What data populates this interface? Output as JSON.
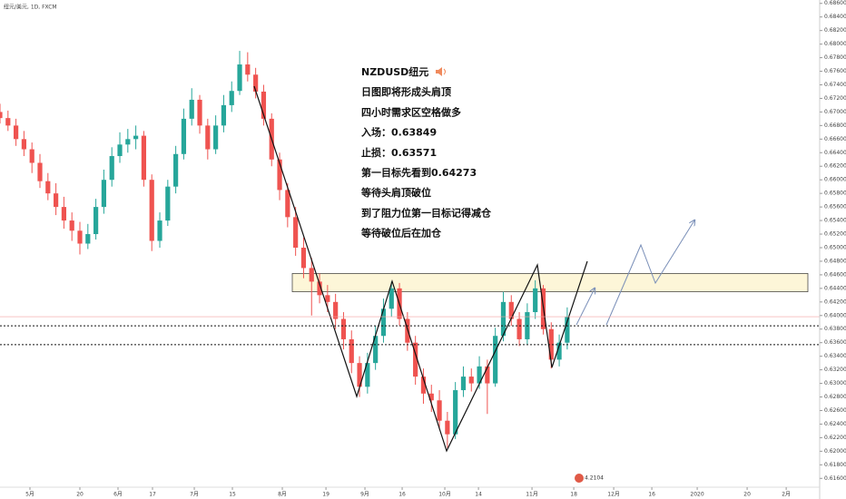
{
  "header": {
    "symbol": "纽元/美元, 1D, FXCM"
  },
  "chart_data": {
    "type": "candlestick",
    "up_color": "#26a69a",
    "down_color": "#ef5350",
    "ohlc": [
      [
        0.67,
        0.6712,
        0.6683,
        0.6691
      ],
      [
        0.6691,
        0.6702,
        0.6672,
        0.668
      ],
      [
        0.668,
        0.669,
        0.665,
        0.666
      ],
      [
        0.666,
        0.6672,
        0.6635,
        0.6645
      ],
      [
        0.6645,
        0.6655,
        0.661,
        0.6625
      ],
      [
        0.6625,
        0.6638,
        0.6588,
        0.6598
      ],
      [
        0.6598,
        0.661,
        0.657,
        0.658
      ],
      [
        0.658,
        0.6595,
        0.6548,
        0.656
      ],
      [
        0.656,
        0.6575,
        0.6528,
        0.654
      ],
      [
        0.654,
        0.6552,
        0.651,
        0.6525
      ],
      [
        0.6525,
        0.6538,
        0.649,
        0.6506
      ],
      [
        0.6506,
        0.6535,
        0.6498,
        0.652
      ],
      [
        0.652,
        0.6572,
        0.6512,
        0.656
      ],
      [
        0.656,
        0.6615,
        0.655,
        0.66
      ],
      [
        0.66,
        0.6648,
        0.659,
        0.6635
      ],
      [
        0.6635,
        0.667,
        0.6625,
        0.6652
      ],
      [
        0.6652,
        0.6675,
        0.664,
        0.666
      ],
      [
        0.666,
        0.668,
        0.6645,
        0.6665
      ],
      [
        0.6665,
        0.6672,
        0.659,
        0.66
      ],
      [
        0.66,
        0.6608,
        0.6495,
        0.651
      ],
      [
        0.651,
        0.6552,
        0.65,
        0.654
      ],
      [
        0.654,
        0.66,
        0.6532,
        0.659
      ],
      [
        0.659,
        0.665,
        0.658,
        0.6638
      ],
      [
        0.6638,
        0.6705,
        0.663,
        0.669
      ],
      [
        0.669,
        0.6735,
        0.668,
        0.6718
      ],
      [
        0.6718,
        0.6725,
        0.6668,
        0.668
      ],
      [
        0.668,
        0.669,
        0.663,
        0.6645
      ],
      [
        0.6645,
        0.6695,
        0.6638,
        0.668
      ],
      [
        0.668,
        0.6725,
        0.667,
        0.671
      ],
      [
        0.671,
        0.6745,
        0.67,
        0.6731
      ],
      [
        0.6731,
        0.679,
        0.6725,
        0.677
      ],
      [
        0.677,
        0.6788,
        0.6745,
        0.6755
      ],
      [
        0.6755,
        0.6765,
        0.672,
        0.673
      ],
      [
        0.673,
        0.674,
        0.668,
        0.669
      ],
      [
        0.669,
        0.6698,
        0.662,
        0.663
      ],
      [
        0.663,
        0.664,
        0.657,
        0.6585
      ],
      [
        0.6585,
        0.6595,
        0.653,
        0.6545
      ],
      [
        0.6545,
        0.656,
        0.6488,
        0.65
      ],
      [
        0.65,
        0.6515,
        0.6455,
        0.647
      ],
      [
        0.647,
        0.6485,
        0.64,
        0.645
      ],
      [
        0.645,
        0.6462,
        0.6418,
        0.643
      ],
      [
        0.643,
        0.6445,
        0.6405,
        0.642
      ],
      [
        0.642,
        0.6432,
        0.638,
        0.6395
      ],
      [
        0.6395,
        0.6405,
        0.635,
        0.6365
      ],
      [
        0.6365,
        0.6378,
        0.6315,
        0.633
      ],
      [
        0.633,
        0.634,
        0.628,
        0.6295
      ],
      [
        0.6295,
        0.6345,
        0.6285,
        0.633
      ],
      [
        0.633,
        0.6385,
        0.632,
        0.637
      ],
      [
        0.637,
        0.6425,
        0.636,
        0.641
      ],
      [
        0.641,
        0.645,
        0.6398,
        0.644
      ],
      [
        0.644,
        0.6448,
        0.6385,
        0.6395
      ],
      [
        0.6395,
        0.6405,
        0.6348,
        0.636
      ],
      [
        0.636,
        0.637,
        0.6298,
        0.631
      ],
      [
        0.631,
        0.6322,
        0.627,
        0.6285
      ],
      [
        0.6285,
        0.6298,
        0.6258,
        0.6275
      ],
      [
        0.6275,
        0.629,
        0.6232,
        0.6245
      ],
      [
        0.6245,
        0.6258,
        0.6205,
        0.6225
      ],
      [
        0.6225,
        0.6302,
        0.6218,
        0.629
      ],
      [
        0.629,
        0.6325,
        0.628,
        0.631
      ],
      [
        0.631,
        0.6322,
        0.6288,
        0.63
      ],
      [
        0.63,
        0.634,
        0.6292,
        0.6325
      ],
      [
        0.6325,
        0.6335,
        0.6255,
        0.63
      ],
      [
        0.63,
        0.6382,
        0.6295,
        0.637
      ],
      [
        0.637,
        0.6435,
        0.6362,
        0.642
      ],
      [
        0.642,
        0.643,
        0.6385,
        0.6395
      ],
      [
        0.6395,
        0.6405,
        0.6355,
        0.6365
      ],
      [
        0.6365,
        0.6418,
        0.6358,
        0.6405
      ],
      [
        0.6405,
        0.6452,
        0.6395,
        0.644
      ],
      [
        0.644,
        0.6445,
        0.6372,
        0.638
      ],
      [
        0.638,
        0.639,
        0.6322,
        0.6335
      ],
      [
        0.6335,
        0.6372,
        0.6325,
        0.636
      ],
      [
        0.636,
        0.6412,
        0.635,
        0.6398
      ]
    ],
    "xlim": [
      0,
      102.6
    ],
    "ylim": [
      0.6147,
      0.6865
    ],
    "xticks": [
      {
        "value": 3.75,
        "label": "5月"
      },
      {
        "value": 10,
        "label": "20"
      },
      {
        "value": 14.77,
        "label": "6月"
      },
      {
        "value": 19.09,
        "label": "17"
      },
      {
        "value": 24.32,
        "label": "7月"
      },
      {
        "value": 29.09,
        "label": "15"
      },
      {
        "value": 35.34,
        "label": "8月"
      },
      {
        "value": 40.8,
        "label": "19"
      },
      {
        "value": 45.68,
        "label": "9月"
      },
      {
        "value": 50.34,
        "label": "16"
      },
      {
        "value": 55.68,
        "label": "10月"
      },
      {
        "value": 59.89,
        "label": "14"
      },
      {
        "value": 66.59,
        "label": "11月"
      },
      {
        "value": 71.82,
        "label": "18"
      },
      {
        "value": 76.82,
        "label": "12月"
      },
      {
        "value": 81.59,
        "label": "16"
      },
      {
        "value": 87.27,
        "label": "2020"
      },
      {
        "value": 93.52,
        "label": "20"
      },
      {
        "value": 98.41,
        "label": "2月"
      }
    ],
    "yticks": [
      {
        "value": 0.616,
        "label": "0.61600"
      },
      {
        "value": 0.618,
        "label": "0.61800"
      },
      {
        "value": 0.62,
        "label": "0.62000"
      },
      {
        "value": 0.622,
        "label": "0.62200"
      },
      {
        "value": 0.624,
        "label": "0.62400"
      },
      {
        "value": 0.626,
        "label": "0.62600"
      },
      {
        "value": 0.628,
        "label": "0.62800"
      },
      {
        "value": 0.63,
        "label": "0.63000"
      },
      {
        "value": 0.632,
        "label": "0.63200"
      },
      {
        "value": 0.634,
        "label": "0.63400"
      },
      {
        "value": 0.636,
        "label": "0.63600"
      },
      {
        "value": 0.638,
        "label": "0.63800"
      },
      {
        "value": 0.64,
        "label": "0.64000"
      },
      {
        "value": 0.642,
        "label": "0.64200"
      },
      {
        "value": 0.644,
        "label": "0.64400"
      },
      {
        "value": 0.646,
        "label": "0.64600"
      },
      {
        "value": 0.648,
        "label": "0.64800"
      },
      {
        "value": 0.65,
        "label": "0.65000"
      },
      {
        "value": 0.652,
        "label": "0.65200"
      },
      {
        "value": 0.654,
        "label": "0.65400"
      },
      {
        "value": 0.656,
        "label": "0.65600"
      },
      {
        "value": 0.658,
        "label": "0.65800"
      },
      {
        "value": 0.66,
        "label": "0.66000"
      },
      {
        "value": 0.662,
        "label": "0.66200"
      },
      {
        "value": 0.664,
        "label": "0.66400"
      },
      {
        "value": 0.666,
        "label": "0.66600"
      },
      {
        "value": 0.668,
        "label": "0.66800"
      },
      {
        "value": 0.67,
        "label": "0.67000"
      },
      {
        "value": 0.672,
        "label": "0.67200"
      },
      {
        "value": 0.674,
        "label": "0.67400"
      },
      {
        "value": 0.676,
        "label": "0.67600"
      },
      {
        "value": 0.678,
        "label": "0.67800"
      },
      {
        "value": 0.68,
        "label": "0.68000"
      },
      {
        "value": 0.682,
        "label": "0.68200"
      },
      {
        "value": 0.684,
        "label": "0.68400"
      },
      {
        "value": 0.686,
        "label": "0.68600"
      }
    ],
    "last_price": 0.63983,
    "levels": [
      0.63849,
      0.63571
    ],
    "zone": [
      0.6435,
      0.6462
    ],
    "annotation": [
      "NZDUSD纽元",
      "日图即将形成头肩顶",
      "四小时需求区空格做多",
      "入场：0.63849",
      "止损：0.63571",
      "第一目标先看到0.64273",
      "等待头肩顶破位",
      "到了阻力位第一目标记得减仓",
      "等待破位后在加仓"
    ],
    "badge": "4.2104"
  }
}
